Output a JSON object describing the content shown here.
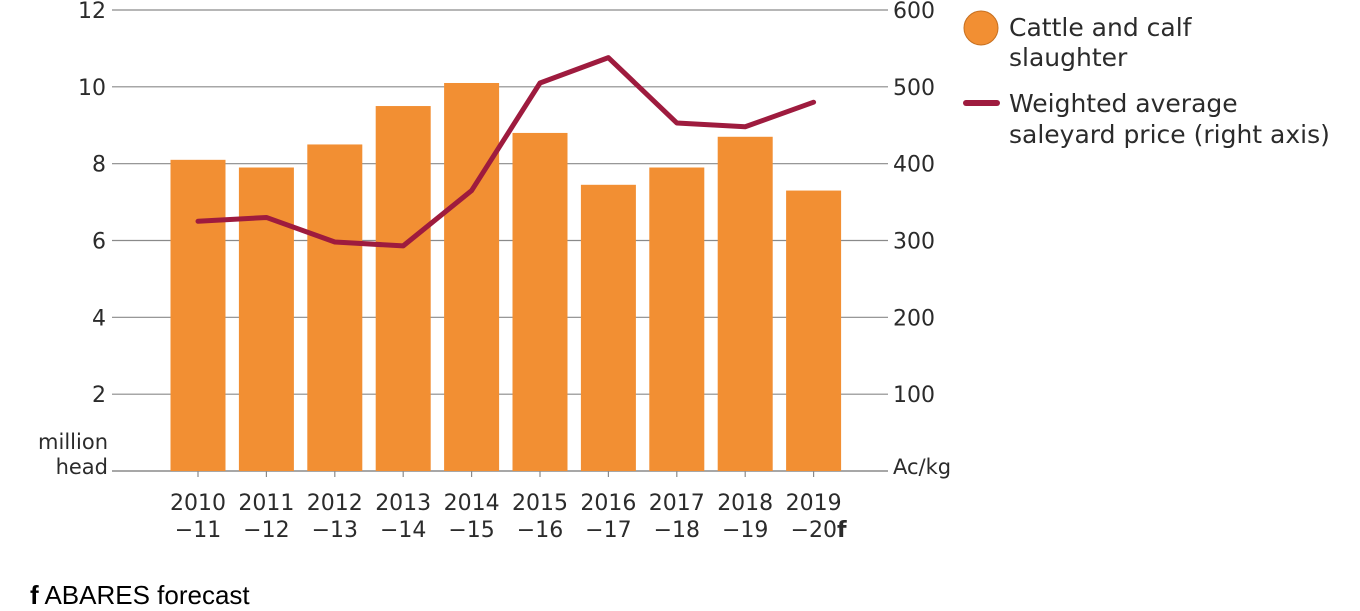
{
  "chart_data": {
    "type": "bar",
    "categories": [
      [
        "2010",
        "−11"
      ],
      [
        "2011",
        "−12"
      ],
      [
        "2012",
        "−13"
      ],
      [
        "2013",
        "−14"
      ],
      [
        "2014",
        "−15"
      ],
      [
        "2015",
        "−16"
      ],
      [
        "2016",
        "−17"
      ],
      [
        "2017",
        "−18"
      ],
      [
        "2018",
        "−19"
      ],
      [
        "2019",
        "−20"
      ]
    ],
    "forecast_marker": "f",
    "series": [
      {
        "name": "Cattle and calf slaughter",
        "type": "bar",
        "axis": "left",
        "color": "#f28f33",
        "values": [
          8.1,
          7.9,
          8.5,
          9.5,
          10.1,
          8.8,
          7.45,
          7.9,
          8.7,
          7.3
        ]
      },
      {
        "name": "Weighted average saleyard price (right axis)",
        "type": "line",
        "axis": "right",
        "color": "#9e1b3e",
        "values": [
          325,
          330,
          298,
          293,
          365,
          505,
          538,
          453,
          448,
          480
        ]
      }
    ],
    "y_left": {
      "label_lines": [
        "million",
        "head"
      ],
      "ticks": [
        "2",
        "4",
        "6",
        "8",
        "10",
        "12"
      ],
      "ylim": [
        0,
        12
      ]
    },
    "y_right": {
      "label": "Ac/kg",
      "ticks": [
        "100",
        "200",
        "300",
        "400",
        "500",
        "600"
      ],
      "ylim": [
        0,
        600
      ]
    },
    "legend": {
      "placement": "top-right",
      "entries": [
        {
          "lines": [
            "Cattle and calf",
            "slaughter"
          ],
          "marker": "circle",
          "color": "#f28f33"
        },
        {
          "lines": [
            "Weighted average",
            "saleyard price (right axis)"
          ],
          "marker": "line",
          "color": "#9e1b3e"
        }
      ]
    },
    "grid": true,
    "gridline_color": "#8a8a8a"
  },
  "footnote": {
    "marker": "f",
    "text": " ABARES forecast"
  }
}
